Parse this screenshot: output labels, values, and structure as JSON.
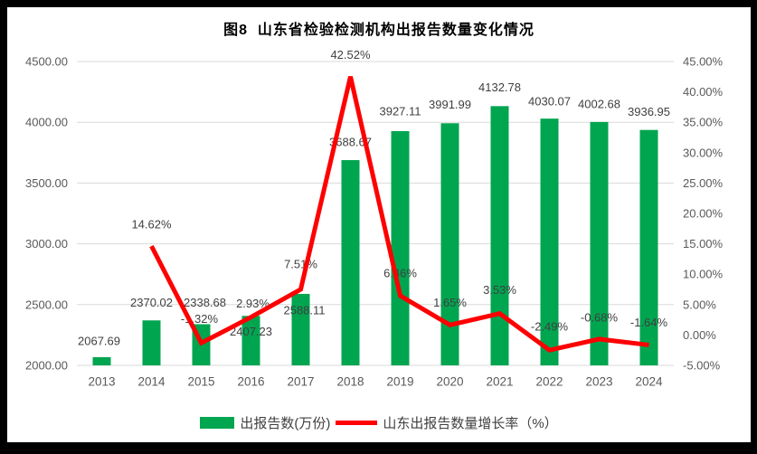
{
  "chart_data": {
    "type": "combo-bar-line",
    "title": "图8  山东省检验检测机构出报告数量变化情况",
    "categories": [
      "2013",
      "2014",
      "2015",
      "2016",
      "2017",
      "2018",
      "2019",
      "2020",
      "2021",
      "2022",
      "2023",
      "2024"
    ],
    "series": [
      {
        "name": "出报告数(万份)",
        "type": "bar",
        "axis": "left",
        "color": "#00A550",
        "values": [
          2067.69,
          2370.02,
          2338.68,
          2407.23,
          2588.11,
          3688.67,
          3927.11,
          3991.99,
          4132.78,
          4030.07,
          4002.68,
          3936.95
        ],
        "labels": [
          "2067.69",
          "2370.02",
          "2338.68",
          "2407.23",
          "2588.11",
          "3688.67",
          "3927.11",
          "3991.99",
          "4132.78",
          "4030.07",
          "4002.68",
          "3936.95"
        ]
      },
      {
        "name": "山东出报告数量增长率（%）",
        "type": "line",
        "axis": "right",
        "color": "#FE0000",
        "values": [
          null,
          14.62,
          -1.32,
          2.93,
          7.51,
          42.52,
          6.46,
          1.65,
          3.53,
          -2.49,
          -0.68,
          -1.64
        ],
        "labels": [
          "",
          "14.62%",
          "-1.32%",
          "2.93%",
          "7.51%",
          "42.52%",
          "6.46%",
          "1.65%",
          "3.53%",
          "-2.49%",
          "-0.68%",
          "-1.64%"
        ]
      }
    ],
    "left_axis": {
      "min": 2000,
      "max": 4500,
      "step": 500,
      "tick_labels": [
        "4500.00",
        "4000.00",
        "3500.00",
        "3000.00",
        "2500.00",
        "2000.00"
      ]
    },
    "right_axis": {
      "min": -5,
      "max": 45,
      "step": 5,
      "tick_labels": [
        "45.00%",
        "40.00%",
        "35.00%",
        "30.00%",
        "25.00%",
        "20.00%",
        "15.00%",
        "10.00%",
        "5.00%",
        "0.00%",
        "-5.00%"
      ]
    },
    "grid": true,
    "grid_color": "#D9D9D9",
    "legend_position": "bottom",
    "layout_hints": {
      "bar_label_dx": [
        -3,
        0,
        4,
        0,
        4,
        0,
        0,
        0,
        0,
        0,
        0,
        0
      ],
      "bar_label_dy": [
        -18,
        -20,
        -24,
        17,
        18,
        -20,
        -22,
        -21,
        -21,
        -19,
        -20,
        -20
      ],
      "line_label_dx": [
        0,
        0,
        -2,
        2,
        0,
        0,
        0,
        0,
        0,
        0,
        0,
        0
      ],
      "line_label_dy": [
        0,
        -24,
        -27,
        -15,
        -28,
        -24,
        -25,
        -25,
        -26,
        -26,
        -24,
        -25
      ]
    }
  }
}
